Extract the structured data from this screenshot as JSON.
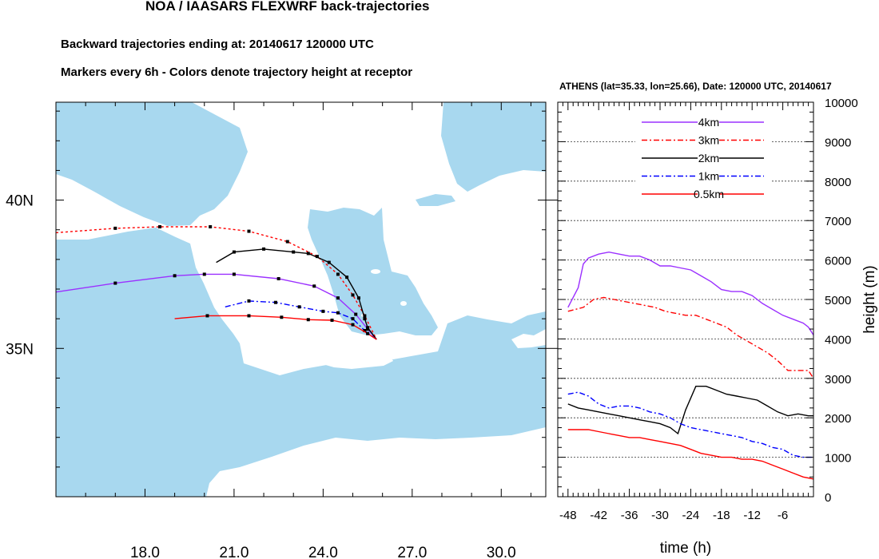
{
  "header": {
    "title": "NOA / IAASARS FLEXWRF back-trajectories",
    "subtitle1": "Backward trajectories ending at: 20140617  120000 UTC",
    "subtitle2": "Markers every 6h - Colors denote trajectory height at receptor"
  },
  "chart_data": [
    {
      "type": "map-trajectories",
      "xlim": [
        15.0,
        31.5
      ],
      "ylim": [
        30.0,
        43.3
      ],
      "x_ticks": [
        "18.0",
        "21.0",
        "24.0",
        "27.0",
        "30.0"
      ],
      "x_tick_values": [
        18,
        21,
        24,
        27,
        30
      ],
      "y_ticks": [
        "35N",
        "40N"
      ],
      "y_tick_values": [
        35,
        40
      ],
      "receptor": {
        "lon": 25.8,
        "lat": 35.3
      },
      "series": [
        {
          "name": "4km",
          "color": "#9b30ff",
          "dash": "solid",
          "points": [
            [
              15.0,
              36.9
            ],
            [
              17.0,
              37.2
            ],
            [
              19.0,
              37.45
            ],
            [
              20.0,
              37.5
            ],
            [
              21.0,
              37.5
            ],
            [
              22.5,
              37.35
            ],
            [
              23.7,
              37.1
            ],
            [
              24.5,
              36.7
            ],
            [
              25.1,
              36.15
            ],
            [
              25.5,
              35.65
            ],
            [
              25.8,
              35.3
            ]
          ]
        },
        {
          "name": "3km",
          "color": "#ff0000",
          "dash": "dotted",
          "points": [
            [
              15.0,
              38.9
            ],
            [
              17.0,
              39.05
            ],
            [
              18.5,
              39.1
            ],
            [
              20.2,
              39.1
            ],
            [
              21.5,
              38.95
            ],
            [
              22.8,
              38.6
            ],
            [
              23.8,
              38.1
            ],
            [
              24.5,
              37.5
            ],
            [
              25.0,
              36.8
            ],
            [
              25.4,
              36.1
            ],
            [
              25.8,
              35.3
            ]
          ]
        },
        {
          "name": "2km",
          "color": "#000000",
          "dash": "solid",
          "points": [
            [
              20.4,
              37.9
            ],
            [
              21.0,
              38.25
            ],
            [
              22.0,
              38.35
            ],
            [
              23.0,
              38.25
            ],
            [
              23.5,
              38.2
            ],
            [
              24.2,
              37.9
            ],
            [
              24.8,
              37.4
            ],
            [
              25.2,
              36.7
            ],
            [
              25.4,
              36.0
            ],
            [
              25.5,
              35.7
            ],
            [
              25.8,
              35.3
            ]
          ]
        },
        {
          "name": "1km",
          "color": "#0000ff",
          "dash": "dashdot",
          "points": [
            [
              20.7,
              36.4
            ],
            [
              21.5,
              36.6
            ],
            [
              22.4,
              36.55
            ],
            [
              23.2,
              36.4
            ],
            [
              24.0,
              36.25
            ],
            [
              24.5,
              36.2
            ],
            [
              25.0,
              36.0
            ],
            [
              25.4,
              35.6
            ],
            [
              25.8,
              35.3
            ]
          ]
        },
        {
          "name": "0.5km",
          "color": "#ff0000",
          "dash": "solid",
          "points": [
            [
              19.0,
              36.0
            ],
            [
              20.1,
              36.1
            ],
            [
              21.5,
              36.1
            ],
            [
              22.6,
              36.05
            ],
            [
              23.5,
              35.97
            ],
            [
              24.3,
              35.95
            ],
            [
              25.0,
              35.8
            ],
            [
              25.5,
              35.5
            ],
            [
              25.8,
              35.3
            ]
          ]
        }
      ]
    },
    {
      "type": "line",
      "title": "ATHENS (lat=35.33,  lon=25.66), Date: 120000 UTC, 20140617",
      "xlabel": "time (h)",
      "ylabel": "height (m)",
      "xlim": [
        -50,
        0
      ],
      "ylim": [
        0,
        10000
      ],
      "x_ticks": [
        "-48",
        "-42",
        "-36",
        "-30",
        "-24",
        "-18",
        "-12",
        "-6"
      ],
      "x_tick_values": [
        -48,
        -42,
        -36,
        -30,
        -24,
        -18,
        -12,
        -6
      ],
      "y_ticks": [
        "0",
        "1000",
        "2000",
        "3000",
        "4000",
        "5000",
        "6000",
        "7000",
        "8000",
        "9000",
        "10000"
      ],
      "y_tick_values": [
        0,
        1000,
        2000,
        3000,
        4000,
        5000,
        6000,
        7000,
        8000,
        9000,
        10000
      ],
      "series": [
        {
          "name": "4km",
          "color": "#9b30ff",
          "dash": "solid",
          "x": [
            -48,
            -46,
            -45,
            -44,
            -42,
            -40,
            -38,
            -36,
            -34,
            -32,
            -30,
            -28,
            -26,
            -24,
            -22,
            -20,
            -18,
            -16,
            -14,
            -12,
            -10,
            -8,
            -6,
            -4,
            -2,
            -1,
            0
          ],
          "y": [
            4800,
            5300,
            5900,
            6050,
            6150,
            6200,
            6150,
            6100,
            6100,
            6000,
            5850,
            5850,
            5800,
            5750,
            5600,
            5450,
            5250,
            5200,
            5200,
            5100,
            4900,
            4750,
            4600,
            4500,
            4400,
            4300,
            4100
          ]
        },
        {
          "name": "3km",
          "color": "#ff0000",
          "dash": "dashdot",
          "x": [
            -48,
            -45,
            -43,
            -41,
            -39,
            -37,
            -35,
            -33,
            -31,
            -29,
            -27,
            -25,
            -23,
            -21,
            -19,
            -17,
            -15,
            -13,
            -11,
            -9,
            -7,
            -5,
            -3,
            -1,
            0
          ],
          "y": [
            4700,
            4800,
            5000,
            5050,
            5000,
            4950,
            4900,
            4850,
            4800,
            4700,
            4650,
            4600,
            4600,
            4500,
            4400,
            4300,
            4100,
            3950,
            3800,
            3650,
            3450,
            3200,
            3200,
            3200,
            3000
          ]
        },
        {
          "name": "2km",
          "color": "#000000",
          "dash": "solid",
          "x": [
            -48,
            -46,
            -44,
            -42,
            -40,
            -38,
            -36,
            -34,
            -32,
            -30,
            -28,
            -26.5,
            -25,
            -23,
            -21,
            -19,
            -17,
            -15,
            -13,
            -11,
            -9,
            -7,
            -5,
            -3,
            -1,
            0
          ],
          "y": [
            2350,
            2250,
            2200,
            2150,
            2100,
            2050,
            2000,
            1950,
            1900,
            1850,
            1750,
            1600,
            2200,
            2800,
            2800,
            2700,
            2600,
            2550,
            2500,
            2450,
            2300,
            2150,
            2050,
            2100,
            2050,
            2050
          ]
        },
        {
          "name": "1km",
          "color": "#0000ff",
          "dash": "dashdot",
          "x": [
            -48,
            -46,
            -44,
            -42,
            -40,
            -38,
            -36,
            -34,
            -32,
            -30,
            -28,
            -26,
            -24,
            -22,
            -20,
            -18,
            -16,
            -14,
            -12,
            -10,
            -8,
            -6,
            -4,
            -2,
            0
          ],
          "y": [
            2600,
            2650,
            2550,
            2350,
            2250,
            2300,
            2300,
            2250,
            2150,
            2100,
            2000,
            1850,
            1750,
            1700,
            1650,
            1600,
            1550,
            1500,
            1400,
            1350,
            1250,
            1200,
            1050,
            1000,
            1000
          ]
        },
        {
          "name": "0.5km",
          "color": "#ff0000",
          "dash": "solid",
          "x": [
            -48,
            -46,
            -44,
            -42,
            -40,
            -38,
            -36,
            -34,
            -32,
            -30,
            -28,
            -26,
            -24,
            -22,
            -20,
            -18,
            -16,
            -14,
            -12,
            -10,
            -8,
            -6,
            -4,
            -2,
            0
          ],
          "y": [
            1700,
            1700,
            1700,
            1650,
            1600,
            1550,
            1500,
            1500,
            1450,
            1400,
            1350,
            1300,
            1200,
            1100,
            1050,
            1000,
            1000,
            950,
            950,
            900,
            800,
            700,
            600,
            500,
            450
          ]
        }
      ]
    }
  ]
}
